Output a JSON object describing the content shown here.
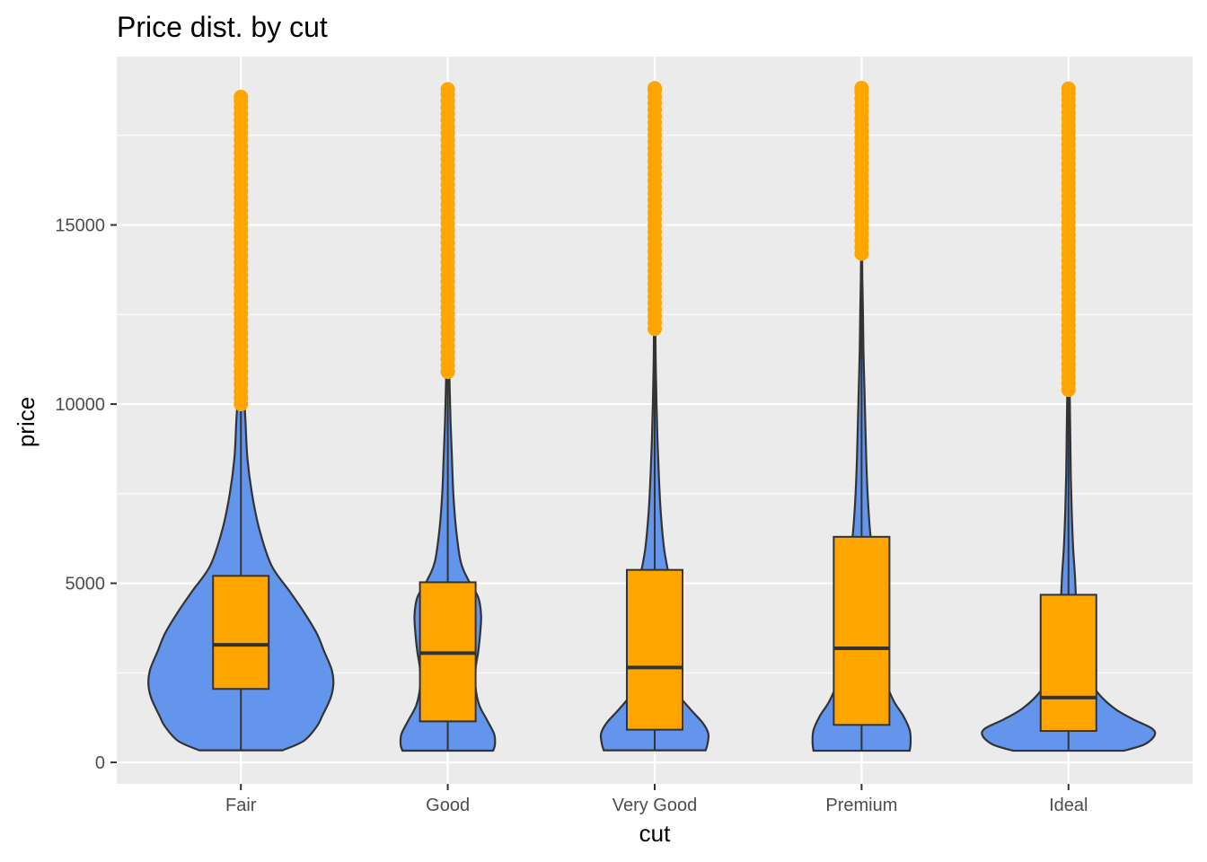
{
  "chart_data": {
    "type": "violin",
    "title": "Price dist. by cut",
    "xlabel": "cut",
    "ylabel": "price",
    "ylim": [
      -600,
      19700
    ],
    "y_ticks": [
      0,
      5000,
      10000,
      15000
    ],
    "y_minor_ticks": [
      2500,
      7500,
      12500,
      17500
    ],
    "grid": true,
    "colors": {
      "panel_background": "#ebebeb",
      "grid": "#ffffff",
      "violin_fill": "#6495ed",
      "violin_outline": "#333333",
      "box_fill": "#ffa500",
      "outlier": "#ffa500"
    },
    "categories": [
      "Fair",
      "Good",
      "Very Good",
      "Premium",
      "Ideal"
    ],
    "series": [
      {
        "category": "Fair",
        "min": 337,
        "q1": 2050,
        "median": 3282,
        "q3": 5206,
        "whisker_high": 9950,
        "max": 18574,
        "outliers_from": 10000,
        "density": [
          [
            337,
            0.45
          ],
          [
            600,
            0.68
          ],
          [
            1000,
            0.82
          ],
          [
            1300,
            0.88
          ],
          [
            1800,
            0.97
          ],
          [
            2200,
            1.0
          ],
          [
            2600,
            0.98
          ],
          [
            3100,
            0.9
          ],
          [
            3600,
            0.82
          ],
          [
            4200,
            0.68
          ],
          [
            4800,
            0.52
          ],
          [
            5500,
            0.33
          ],
          [
            6500,
            0.2
          ],
          [
            7500,
            0.12
          ],
          [
            8500,
            0.07
          ],
          [
            9500,
            0.05
          ],
          [
            10500,
            0.03
          ],
          [
            12000,
            0.02
          ],
          [
            14000,
            0.015
          ],
          [
            16000,
            0.01
          ],
          [
            17000,
            0.005
          ]
        ]
      },
      {
        "category": "Good",
        "min": 327,
        "q1": 1145,
        "median": 3050,
        "q3": 5028,
        "whisker_high": 10750,
        "max": 18788,
        "outliers_from": 10900,
        "density": [
          [
            327,
            0.49
          ],
          [
            500,
            0.51
          ],
          [
            800,
            0.5
          ],
          [
            1200,
            0.42
          ],
          [
            1600,
            0.34
          ],
          [
            2100,
            0.3
          ],
          [
            2600,
            0.3
          ],
          [
            3100,
            0.33
          ],
          [
            3600,
            0.35
          ],
          [
            4100,
            0.36
          ],
          [
            4600,
            0.33
          ],
          [
            5100,
            0.22
          ],
          [
            5600,
            0.14
          ],
          [
            6500,
            0.09
          ],
          [
            7500,
            0.06
          ],
          [
            8500,
            0.045
          ],
          [
            9500,
            0.03
          ],
          [
            10500,
            0.02
          ],
          [
            11500,
            0.015
          ],
          [
            13000,
            0.01
          ]
        ]
      },
      {
        "category": "Very Good",
        "min": 336,
        "q1": 912,
        "median": 2648,
        "q3": 5373,
        "whisker_high": 12000,
        "max": 18818,
        "outliers_from": 12100,
        "density": [
          [
            336,
            0.55
          ],
          [
            500,
            0.57
          ],
          [
            800,
            0.58
          ],
          [
            1100,
            0.52
          ],
          [
            1500,
            0.38
          ],
          [
            1900,
            0.26
          ],
          [
            2400,
            0.22
          ],
          [
            2900,
            0.22
          ],
          [
            3400,
            0.23
          ],
          [
            3900,
            0.23
          ],
          [
            4400,
            0.22
          ],
          [
            4900,
            0.18
          ],
          [
            5400,
            0.14
          ],
          [
            6000,
            0.1
          ],
          [
            7000,
            0.065
          ],
          [
            8000,
            0.045
          ],
          [
            9000,
            0.03
          ],
          [
            10000,
            0.02
          ],
          [
            11000,
            0.012
          ],
          [
            12000,
            0.008
          ]
        ]
      },
      {
        "category": "Premium",
        "min": 326,
        "q1": 1046,
        "median": 3185,
        "q3": 6296,
        "whisker_high": 14100,
        "max": 18823,
        "outliers_from": 14200,
        "density": [
          [
            326,
            0.52
          ],
          [
            550,
            0.53
          ],
          [
            900,
            0.52
          ],
          [
            1300,
            0.45
          ],
          [
            1700,
            0.35
          ],
          [
            2200,
            0.27
          ],
          [
            2800,
            0.24
          ],
          [
            3400,
            0.23
          ],
          [
            4000,
            0.21
          ],
          [
            4600,
            0.19
          ],
          [
            5200,
            0.15
          ],
          [
            5800,
            0.12
          ],
          [
            6500,
            0.09
          ],
          [
            7500,
            0.065
          ],
          [
            8500,
            0.05
          ],
          [
            9500,
            0.04
          ],
          [
            10500,
            0.03
          ],
          [
            11500,
            0.02
          ],
          [
            12500,
            0.015
          ],
          [
            13500,
            0.008
          ],
          [
            14100,
            0.006
          ]
        ]
      },
      {
        "category": "Ideal",
        "min": 326,
        "q1": 878,
        "median": 1810,
        "q3": 4678,
        "whisker_high": 10350,
        "max": 18806,
        "outliers_from": 10400,
        "density": [
          [
            326,
            0.6
          ],
          [
            500,
            0.82
          ],
          [
            750,
            0.93
          ],
          [
            950,
            0.9
          ],
          [
            1200,
            0.7
          ],
          [
            1500,
            0.5
          ],
          [
            1900,
            0.33
          ],
          [
            2400,
            0.2
          ],
          [
            3000,
            0.14
          ],
          [
            3700,
            0.11
          ],
          [
            4400,
            0.085
          ],
          [
            5200,
            0.07
          ],
          [
            6000,
            0.05
          ],
          [
            7000,
            0.035
          ],
          [
            8000,
            0.025
          ],
          [
            9000,
            0.02
          ],
          [
            10000,
            0.015
          ],
          [
            10350,
            0.012
          ]
        ]
      }
    ]
  }
}
